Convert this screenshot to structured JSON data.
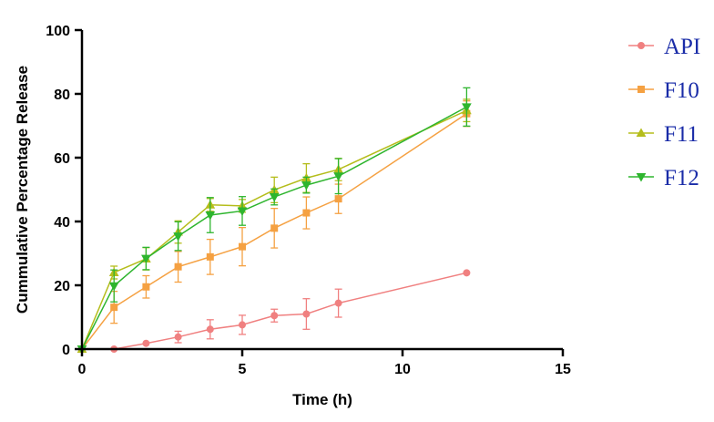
{
  "chart_data": {
    "type": "line",
    "title": "",
    "xlabel": "Time (h)",
    "ylabel": "Cummulative Percentage  Release",
    "xlim": [
      0,
      15
    ],
    "ylim": [
      0,
      100
    ],
    "xticks": [
      0,
      5,
      10,
      15
    ],
    "yticks": [
      0,
      20,
      40,
      60,
      80,
      100
    ],
    "grid": false,
    "legend_position": "right",
    "x": [
      0,
      1,
      2,
      3,
      4,
      5,
      6,
      7,
      8,
      12
    ],
    "series": [
      {
        "name": "API",
        "color": "#f08080",
        "marker": "circle",
        "values": [
          0,
          0,
          1.8,
          3.8,
          6.2,
          7.6,
          10.5,
          11.0,
          14.4,
          23.9
        ],
        "errors": [
          0,
          0,
          0,
          1.8,
          3.0,
          3.0,
          2.0,
          4.8,
          4.4,
          0
        ]
      },
      {
        "name": "F10",
        "color": "#f5a142",
        "marker": "square",
        "values": [
          0,
          13.1,
          19.5,
          25.8,
          28.9,
          32.1,
          37.9,
          42.7,
          47.1,
          73.8
        ],
        "errors": [
          0,
          5.0,
          3.5,
          4.8,
          5.5,
          6.0,
          6.2,
          5.0,
          4.6,
          4.0
        ]
      },
      {
        "name": "F11",
        "color": "#b5bd1c",
        "marker": "triangle-up",
        "values": [
          0,
          24.0,
          28.3,
          36.7,
          45.2,
          44.9,
          49.9,
          53.6,
          56.3,
          74.8
        ],
        "errors": [
          0,
          2.0,
          3.5,
          3.5,
          2.0,
          2.0,
          4.0,
          4.5,
          3.5,
          3.5
        ]
      },
      {
        "name": "F12",
        "color": "#2eb52e",
        "marker": "triangle-down",
        "values": [
          0,
          19.8,
          28.4,
          35.4,
          42.0,
          43.3,
          47.7,
          51.4,
          54.2,
          75.9
        ],
        "errors": [
          0,
          5.0,
          3.5,
          4.5,
          5.5,
          4.5,
          2.5,
          2.5,
          5.5,
          6.0
        ]
      }
    ]
  }
}
